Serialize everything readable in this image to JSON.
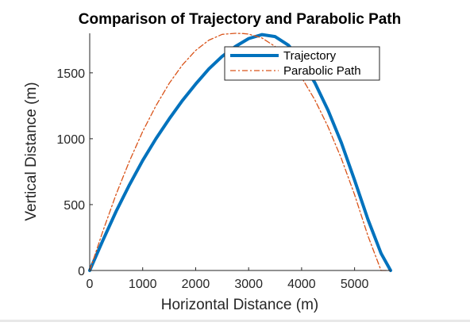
{
  "chart_data": {
    "type": "line",
    "title": "Comparison of Trajectory and Parabolic Path",
    "xlabel": "Horizontal Distance (m)",
    "ylabel": "Vertical Distance (m)",
    "xlim": [
      0,
      5680
    ],
    "ylim": [
      0,
      1800
    ],
    "xticks": [
      0,
      1000,
      2000,
      3000,
      4000,
      5000
    ],
    "yticks": [
      0,
      500,
      1000,
      1500
    ],
    "legend_position": "top-right",
    "grid": false,
    "series": [
      {
        "name": "Trajectory",
        "style": "solid",
        "color": "#0072BD",
        "x": [
          0,
          250,
          500,
          750,
          1000,
          1250,
          1500,
          1750,
          2000,
          2250,
          2500,
          2750,
          3000,
          3250,
          3500,
          3750,
          4000,
          4250,
          4500,
          4750,
          5000,
          5250,
          5500,
          5680
        ],
        "y": [
          0,
          230,
          450,
          650,
          835,
          1000,
          1150,
          1290,
          1415,
          1530,
          1625,
          1700,
          1760,
          1790,
          1775,
          1710,
          1590,
          1425,
          1215,
          970,
          685,
          390,
          130,
          0
        ]
      },
      {
        "name": "Parabolic Path",
        "style": "dash-dot",
        "color": "#D95319",
        "x": [
          0,
          250,
          500,
          750,
          1000,
          1250,
          1500,
          1750,
          2000,
          2250,
          2500,
          2750,
          2900,
          3000,
          3250,
          3500,
          3750,
          4000,
          4250,
          4500,
          4750,
          5000,
          5250,
          5500,
          5680
        ],
        "y": [
          0,
          300,
          580,
          830,
          1055,
          1250,
          1420,
          1560,
          1670,
          1748,
          1792,
          1800,
          1798,
          1794,
          1765,
          1700,
          1600,
          1465,
          1295,
          1090,
          850,
          575,
          265,
          0,
          0
        ]
      }
    ]
  }
}
